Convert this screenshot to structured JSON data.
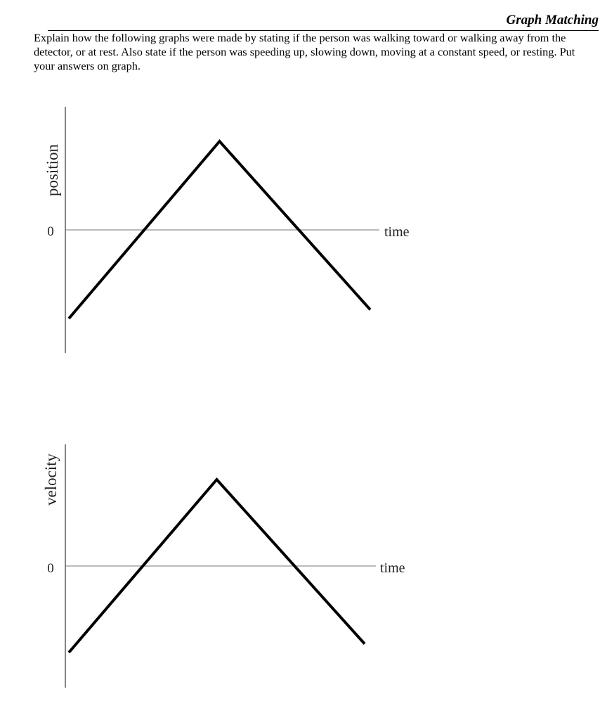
{
  "header": {
    "title": "Graph Matching"
  },
  "instructions": "Explain how the following graphs were made by stating if the person was walking toward or walking away from the detector, or at rest. Also state if the person was speeding up, slowing down, moving at a constant speed, or resting. Put your answers on graph.",
  "graphs": [
    {
      "y_label": "position",
      "zero_label": "0",
      "x_label": "time"
    },
    {
      "y_label": "velocity",
      "zero_label": "0",
      "x_label": "time"
    }
  ],
  "chart_data": [
    {
      "type": "line",
      "ylabel": "position",
      "xlabel": "time",
      "x": [
        0,
        0.5,
        1
      ],
      "series": [
        {
          "values": [
            -1,
            1,
            -0.9
          ]
        }
      ],
      "ylim": [
        -1.3,
        1.3
      ]
    },
    {
      "type": "line",
      "ylabel": "velocity",
      "xlabel": "time",
      "x": [
        0,
        0.5,
        1
      ],
      "series": [
        {
          "values": [
            -1,
            1,
            -0.9
          ]
        }
      ],
      "ylim": [
        -1.3,
        1.3
      ]
    }
  ]
}
